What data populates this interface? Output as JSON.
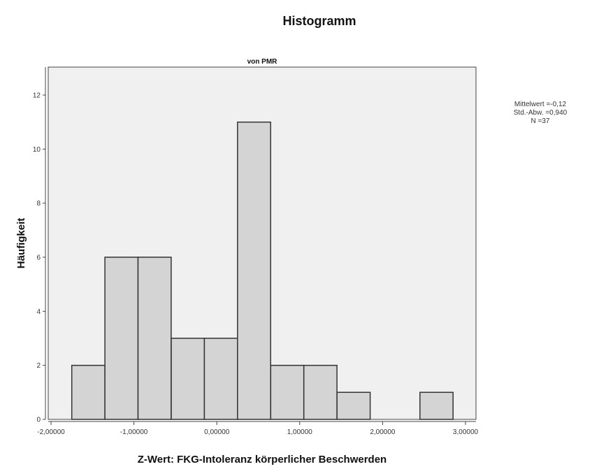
{
  "chart_data": {
    "type": "bar",
    "title": "Histogramm",
    "subtitle": "von PMR",
    "xlabel": "Z-Wert:  FKG-Intoleranz körperlicher Beschwerden",
    "ylabel": "Häufigkeit",
    "xlim": [
      -2.0,
      3.0
    ],
    "ylim": [
      0,
      12
    ],
    "x_ticks": [
      -2.0,
      -1.0,
      0.0,
      1.0,
      2.0,
      3.0
    ],
    "x_tick_labels": [
      "-2,00000",
      "-1,00000",
      "0,00000",
      "1,00000",
      "2,00000",
      "3,00000"
    ],
    "y_ticks": [
      0,
      2,
      4,
      6,
      8,
      10,
      12
    ],
    "y_tick_labels": [
      "0",
      "2",
      "4",
      "6",
      "8",
      "10",
      "12"
    ],
    "bins": [
      {
        "from": -1.75,
        "to": -1.35,
        "count": 2
      },
      {
        "from": -1.35,
        "to": -0.95,
        "count": 6
      },
      {
        "from": -0.95,
        "to": -0.55,
        "count": 6
      },
      {
        "from": -0.55,
        "to": -0.15,
        "count": 3
      },
      {
        "from": -0.15,
        "to": 0.25,
        "count": 3
      },
      {
        "from": 0.25,
        "to": 0.65,
        "count": 11
      },
      {
        "from": 0.65,
        "to": 1.05,
        "count": 2
      },
      {
        "from": 1.05,
        "to": 1.45,
        "count": 2
      },
      {
        "from": 1.45,
        "to": 1.85,
        "count": 1
      },
      {
        "from": 2.45,
        "to": 2.85,
        "count": 1
      }
    ],
    "grid": false,
    "bar_fill": "#d4d4d4",
    "bar_stroke": "#333333",
    "plot_background": "#f0f0f0"
  },
  "stats": {
    "mean": "Mittelwert =-0,12",
    "sd": "Std.-Abw. =0,940",
    "n": "N =37"
  }
}
